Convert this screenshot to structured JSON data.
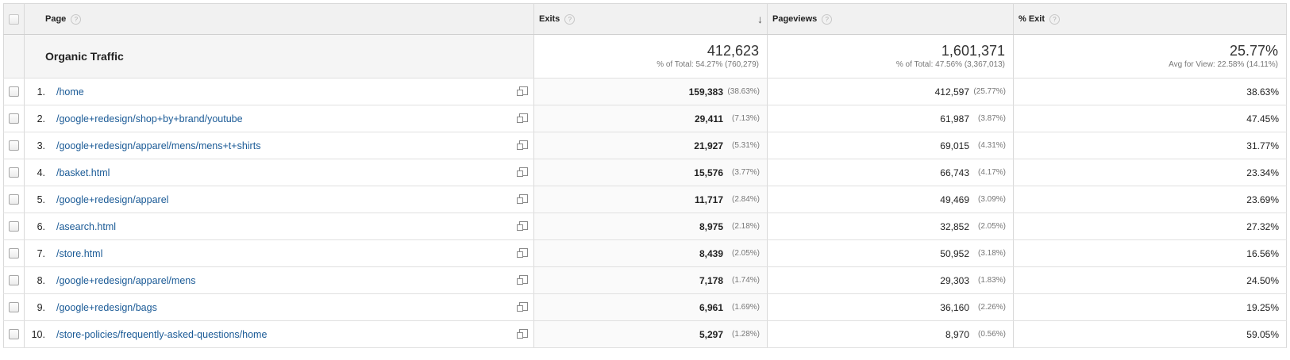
{
  "header": {
    "page": "Page",
    "exits": "Exits",
    "pageviews": "Pageviews",
    "pct_exit": "% Exit",
    "help": "?",
    "sort_icon": "↓"
  },
  "totals": {
    "label": "Organic Traffic",
    "exits": "412,623",
    "exits_sub": "% of Total: 54.27% (760,279)",
    "pageviews": "1,601,371",
    "pageviews_sub": "% of Total: 47.56% (3,367,013)",
    "pct_exit": "25.77%",
    "pct_exit_sub": "Avg for View: 22.58% (14.11%)"
  },
  "rows": [
    {
      "idx": "1.",
      "page": "/home",
      "exits": "159,383",
      "exits_pct": "(38.63%)",
      "pv": "412,597",
      "pv_pct": "(25.77%)",
      "pct_exit": "38.63%"
    },
    {
      "idx": "2.",
      "page": "/google+redesign/shop+by+brand/youtube",
      "exits": "29,411",
      "exits_pct": "(7.13%)",
      "pv": "61,987",
      "pv_pct": "(3.87%)",
      "pct_exit": "47.45%"
    },
    {
      "idx": "3.",
      "page": "/google+redesign/apparel/mens/mens+t+shirts",
      "exits": "21,927",
      "exits_pct": "(5.31%)",
      "pv": "69,015",
      "pv_pct": "(4.31%)",
      "pct_exit": "31.77%"
    },
    {
      "idx": "4.",
      "page": "/basket.html",
      "exits": "15,576",
      "exits_pct": "(3.77%)",
      "pv": "66,743",
      "pv_pct": "(4.17%)",
      "pct_exit": "23.34%"
    },
    {
      "idx": "5.",
      "page": "/google+redesign/apparel",
      "exits": "11,717",
      "exits_pct": "(2.84%)",
      "pv": "49,469",
      "pv_pct": "(3.09%)",
      "pct_exit": "23.69%"
    },
    {
      "idx": "6.",
      "page": "/asearch.html",
      "exits": "8,975",
      "exits_pct": "(2.18%)",
      "pv": "32,852",
      "pv_pct": "(2.05%)",
      "pct_exit": "27.32%"
    },
    {
      "idx": "7.",
      "page": "/store.html",
      "exits": "8,439",
      "exits_pct": "(2.05%)",
      "pv": "50,952",
      "pv_pct": "(3.18%)",
      "pct_exit": "16.56%"
    },
    {
      "idx": "8.",
      "page": "/google+redesign/apparel/mens",
      "exits": "7,178",
      "exits_pct": "(1.74%)",
      "pv": "29,303",
      "pv_pct": "(1.83%)",
      "pct_exit": "24.50%"
    },
    {
      "idx": "9.",
      "page": "/google+redesign/bags",
      "exits": "6,961",
      "exits_pct": "(1.69%)",
      "pv": "36,160",
      "pv_pct": "(2.26%)",
      "pct_exit": "19.25%"
    },
    {
      "idx": "10.",
      "page": "/store-policies/frequently-asked-questions/home",
      "exits": "5,297",
      "exits_pct": "(1.28%)",
      "pv": "8,970",
      "pv_pct": "(0.56%)",
      "pct_exit": "59.05%"
    }
  ]
}
